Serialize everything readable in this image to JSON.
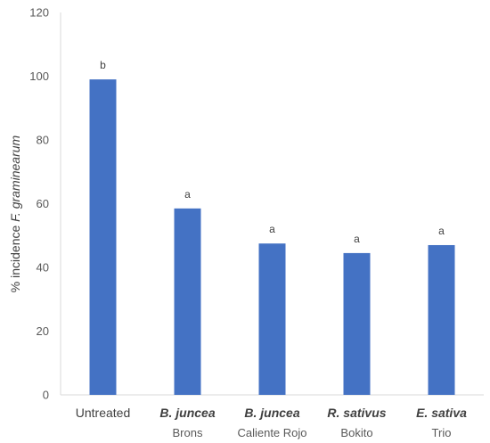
{
  "chart_data": {
    "type": "bar",
    "ylabel_prefix": "% incidence ",
    "ylabel_italic": "F. graminearum",
    "ylim": [
      0,
      120
    ],
    "yticks": [
      0,
      20,
      40,
      60,
      80,
      100,
      120
    ],
    "grid": false,
    "bar_color": "#4472C4",
    "categories": [
      {
        "main": "Untreated",
        "sub": "",
        "italic": false
      },
      {
        "main": "B. juncea",
        "sub": "Brons",
        "italic": true
      },
      {
        "main": "B. juncea",
        "sub": "Caliente Rojo",
        "italic": true
      },
      {
        "main": "R. sativus",
        "sub": "Bokito",
        "italic": true
      },
      {
        "main": "E. sativa",
        "sub": "Trio",
        "italic": true
      }
    ],
    "values": [
      99,
      58.5,
      47.5,
      44.5,
      47
    ],
    "significance_letters": [
      "b",
      "a",
      "a",
      "a",
      "a"
    ]
  }
}
